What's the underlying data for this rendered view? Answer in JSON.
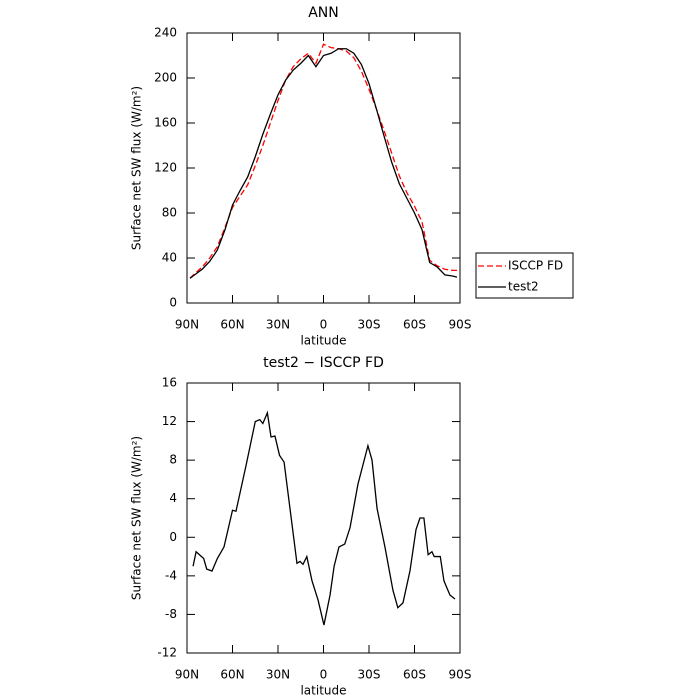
{
  "chart_data": [
    {
      "type": "line",
      "title": "ANN",
      "xlabel": "latitude",
      "ylabel": "Surface net SW flux (W/m²)",
      "x": [
        88,
        85,
        80,
        75,
        70,
        65,
        60,
        55,
        50,
        45,
        40,
        35,
        30,
        25,
        20,
        15,
        10,
        5,
        0,
        -5,
        -10,
        -15,
        -20,
        -25,
        -30,
        -35,
        -40,
        -45,
        -50,
        -55,
        -60,
        -65,
        -70,
        -75,
        -80,
        -85,
        -88
      ],
      "series": [
        {
          "name": "ISCCP FD",
          "color": "#ff0000",
          "linestyle": "dashed",
          "values": [
            22,
            26,
            32,
            40,
            50,
            67,
            85,
            95,
            105,
            122,
            140,
            160,
            180,
            198,
            210,
            217,
            222,
            213,
            230,
            227,
            226,
            224,
            218,
            206,
            190,
            172,
            153,
            133,
            113,
            98,
            86,
            72,
            38,
            33,
            30,
            29,
            29
          ]
        },
        {
          "name": "test2",
          "color": "#000000",
          "linestyle": "solid",
          "values": [
            22,
            25,
            30,
            37,
            47,
            65,
            87,
            100,
            112,
            130,
            150,
            168,
            185,
            198,
            207,
            213,
            220,
            210,
            220,
            222,
            226,
            226,
            222,
            212,
            195,
            172,
            148,
            125,
            106,
            93,
            80,
            65,
            36,
            32,
            25,
            24,
            23
          ]
        }
      ],
      "xlim": [
        90,
        -90
      ],
      "xticks": [
        {
          "value": 90,
          "label": "90N"
        },
        {
          "value": 60,
          "label": "60N"
        },
        {
          "value": 30,
          "label": "30N"
        },
        0,
        {
          "value": -30,
          "label": "30S"
        },
        {
          "value": -60,
          "label": "60S"
        },
        {
          "value": -90,
          "label": "90S"
        }
      ],
      "ylim": [
        0,
        240
      ],
      "yticks": [
        0,
        40,
        80,
        120,
        160,
        200,
        240
      ],
      "legend": "right"
    },
    {
      "type": "line",
      "title": "test2 − ISCCP FD",
      "xlabel": "latitude",
      "ylabel": "Surface net SW flux (W/m²)",
      "x": [
        86,
        84,
        79,
        77,
        73.5,
        70,
        65.6,
        60,
        57.7,
        51,
        45,
        42,
        40,
        37,
        34.6,
        32,
        29,
        26,
        17.5,
        15.5,
        13.5,
        11,
        7.6,
        3.6,
        -0.3,
        -4.3,
        -7,
        -10.2,
        -14,
        -17.5,
        -22.7,
        -29.3,
        -32,
        -35.3,
        -40.5,
        -45.8,
        -49,
        -52.4,
        -57,
        -61,
        -63.6,
        -66.2,
        -69,
        -71.5,
        -73,
        -77,
        -79.4,
        -80.7,
        -83.4,
        -86.7
      ],
      "series": [
        {
          "color": "#000000",
          "linestyle": "solid",
          "values": [
            -3,
            -1.5,
            -2.2,
            -3.3,
            -3.5,
            -2.2,
            -1,
            2.8,
            2.7,
            7.5,
            12,
            12.2,
            11.8,
            12.9,
            10.4,
            10.5,
            8.5,
            7.8,
            -2.7,
            -2.5,
            -2.8,
            -2,
            -4.5,
            -6.5,
            -9.1,
            -6,
            -3,
            -1,
            -0.7,
            1,
            5.5,
            9.5,
            8,
            3,
            -1,
            -5.5,
            -7.3,
            -6.8,
            -3.5,
            0.8,
            2,
            2,
            -1.8,
            -1.5,
            -2,
            -2,
            -4.5,
            -5,
            -6,
            -6.4
          ]
        }
      ],
      "xlim": [
        90,
        -90
      ],
      "xticks": [
        {
          "value": 90,
          "label": "90N"
        },
        {
          "value": 60,
          "label": "60N"
        },
        {
          "value": 30,
          "label": "30N"
        },
        0,
        {
          "value": -30,
          "label": "30S"
        },
        {
          "value": -60,
          "label": "60S"
        },
        {
          "value": -90,
          "label": "90S"
        }
      ],
      "ylim": [
        -12,
        16
      ],
      "yticks": [
        -12,
        -8,
        -4,
        0,
        4,
        8,
        12,
        16
      ]
    }
  ]
}
